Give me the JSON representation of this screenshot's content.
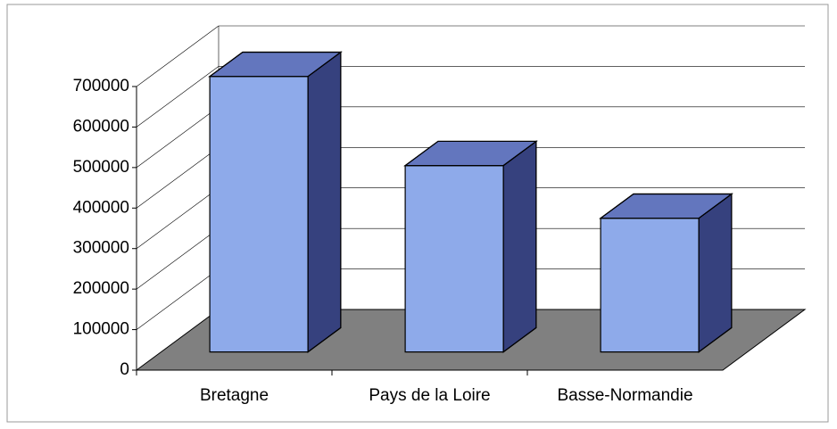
{
  "chart_data": {
    "type": "bar3d",
    "categories": [
      "Bretagne",
      "Pays de la Loire",
      "Basse-Normandie"
    ],
    "values": [
      680000,
      460000,
      330000
    ],
    "color": "#8eaaea",
    "ylim": [
      0,
      700000
    ],
    "yticks": [
      0,
      100000,
      200000,
      300000,
      400000,
      500000,
      600000,
      700000
    ],
    "grid": true
  }
}
